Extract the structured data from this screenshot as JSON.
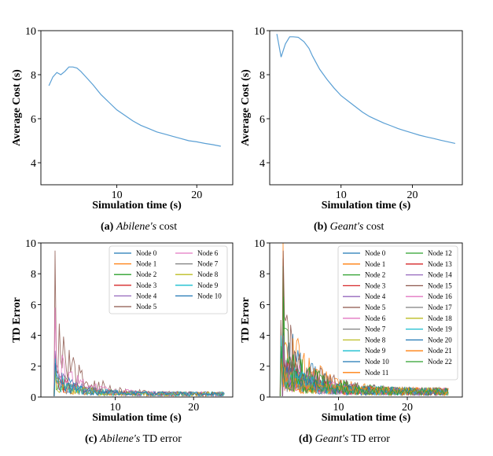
{
  "chart_data": [
    {
      "id": "a",
      "type": "line",
      "caption": {
        "label": "(a)",
        "italic": "Abilene's",
        "rest": "cost"
      },
      "xlabel": "Simulation time (s)",
      "ylabel": "Average Cost (s)",
      "xlim": [
        0.5,
        24.5
      ],
      "ylim": [
        3.0,
        10.0
      ],
      "xticks": [
        10,
        20
      ],
      "yticks": [
        4,
        6,
        8,
        10
      ],
      "color": "#5a9fd4",
      "series": [
        {
          "x": [
            1.5,
            2.0,
            2.5,
            3.0,
            3.5,
            4.0,
            4.5,
            5.0,
            5.5,
            6.0,
            7.0,
            8.0,
            9.0,
            10.0,
            11.0,
            12.0,
            13.0,
            14.0,
            15.0,
            16.0,
            17.0,
            18.0,
            19.0,
            20.0,
            21.0,
            22.0,
            23.0
          ],
          "y": [
            7.5,
            7.9,
            8.1,
            8.0,
            8.15,
            8.35,
            8.35,
            8.3,
            8.15,
            7.95,
            7.55,
            7.1,
            6.75,
            6.4,
            6.15,
            5.9,
            5.7,
            5.55,
            5.4,
            5.3,
            5.2,
            5.1,
            5.0,
            4.95,
            4.88,
            4.82,
            4.75
          ]
        }
      ]
    },
    {
      "id": "b",
      "type": "line",
      "caption": {
        "label": "(b)",
        "italic": "Geant's",
        "rest": "cost"
      },
      "xlabel": "Simulation time (s)",
      "ylabel": "Average Cost (s)",
      "xlim": [
        0.0,
        27.0
      ],
      "ylim": [
        3.0,
        10.0
      ],
      "xticks": [
        10,
        20
      ],
      "yticks": [
        4,
        6,
        8,
        10
      ],
      "color": "#5a9fd4",
      "series": [
        {
          "x": [
            1.0,
            1.6,
            2.2,
            2.8,
            3.3,
            4.0,
            4.8,
            5.5,
            6.0,
            7.0,
            8.0,
            9.0,
            10.0,
            11.0,
            12.0,
            13.0,
            14.0,
            15.0,
            16.0,
            17.0,
            18.0,
            19.0,
            20.0,
            21.0,
            22.0,
            23.0,
            24.0,
            25.0,
            26.0
          ],
          "y": [
            9.85,
            8.8,
            9.4,
            9.72,
            9.72,
            9.7,
            9.5,
            9.2,
            8.85,
            8.25,
            7.8,
            7.4,
            7.05,
            6.8,
            6.55,
            6.3,
            6.1,
            5.95,
            5.8,
            5.68,
            5.55,
            5.45,
            5.35,
            5.25,
            5.17,
            5.1,
            5.02,
            4.95,
            4.88
          ]
        }
      ]
    },
    {
      "id": "c",
      "type": "line",
      "caption": {
        "label": "(c)",
        "italic": "Abilene's",
        "rest": "TD error"
      },
      "xlabel": "Simulation time (s)",
      "ylabel": "TD Error",
      "xlim": [
        0.5,
        25.0
      ],
      "ylim": [
        0,
        10
      ],
      "xticks": [
        10,
        20
      ],
      "yticks": [
        0,
        2,
        4,
        6,
        8,
        10
      ],
      "legend": {
        "position": "top-right",
        "columns": 2
      },
      "series_names": [
        "Node 0",
        "Node 1",
        "Node 2",
        "Node 3",
        "Node 4",
        "Node 5",
        "Node 6",
        "Node 7",
        "Node 8",
        "Node 9",
        "Node 10"
      ],
      "peak_start": 2.0,
      "end_x": 24.0,
      "peaks": [
        3.0,
        2.2,
        2.8,
        2.5,
        3.0,
        9.5,
        5.8,
        2.0,
        1.8,
        2.5,
        2.2
      ],
      "tail": 0.2,
      "decay": 3.0
    },
    {
      "id": "d",
      "type": "line",
      "caption": {
        "label": "(d)",
        "italic": "Geant's",
        "rest": "TD error"
      },
      "xlabel": "Simulation time (s)",
      "ylabel": "TD Error",
      "xlim": [
        0.0,
        28.0
      ],
      "ylim": [
        0,
        10
      ],
      "xticks": [
        10,
        20
      ],
      "yticks": [
        0,
        2,
        4,
        6,
        8,
        10
      ],
      "legend": {
        "position": "top-right",
        "columns": 2
      },
      "series_names": [
        "Node 0",
        "Node 1",
        "Node 2",
        "Node 3",
        "Node 4",
        "Node 5",
        "Node 6",
        "Node 7",
        "Node 8",
        "Node 9",
        "Node 10",
        "Node 11",
        "Node 12",
        "Node 13",
        "Node 14",
        "Node 15",
        "Node 16",
        "Node 17",
        "Node 18",
        "Node 19",
        "Node 20",
        "Node 21",
        "Node 22"
      ],
      "peak_start": 1.5,
      "end_x": 26.0,
      "peaks": [
        9.0,
        10.0,
        8.5,
        3.5,
        4.0,
        9.5,
        5.0,
        4.5,
        3.0,
        3.8,
        4.2,
        3.0,
        6.5,
        3.5,
        4.0,
        5.0,
        3.2,
        2.8,
        3.5,
        4.0,
        3.0,
        2.5,
        3.3
      ],
      "tail": 0.35,
      "decay": 4.0
    }
  ],
  "palette": [
    "#1f77b4",
    "#ff7f0e",
    "#2ca02c",
    "#d62728",
    "#9467bd",
    "#8c564b",
    "#e377c2",
    "#7f7f7f",
    "#bcbd22",
    "#17becf",
    "#1f77b4",
    "#ff7f0e",
    "#2ca02c",
    "#d62728",
    "#9467bd",
    "#8c564b",
    "#e377c2",
    "#7f7f7f",
    "#bcbd22",
    "#17becf",
    "#1f77b4",
    "#ff7f0e",
    "#2ca02c"
  ]
}
